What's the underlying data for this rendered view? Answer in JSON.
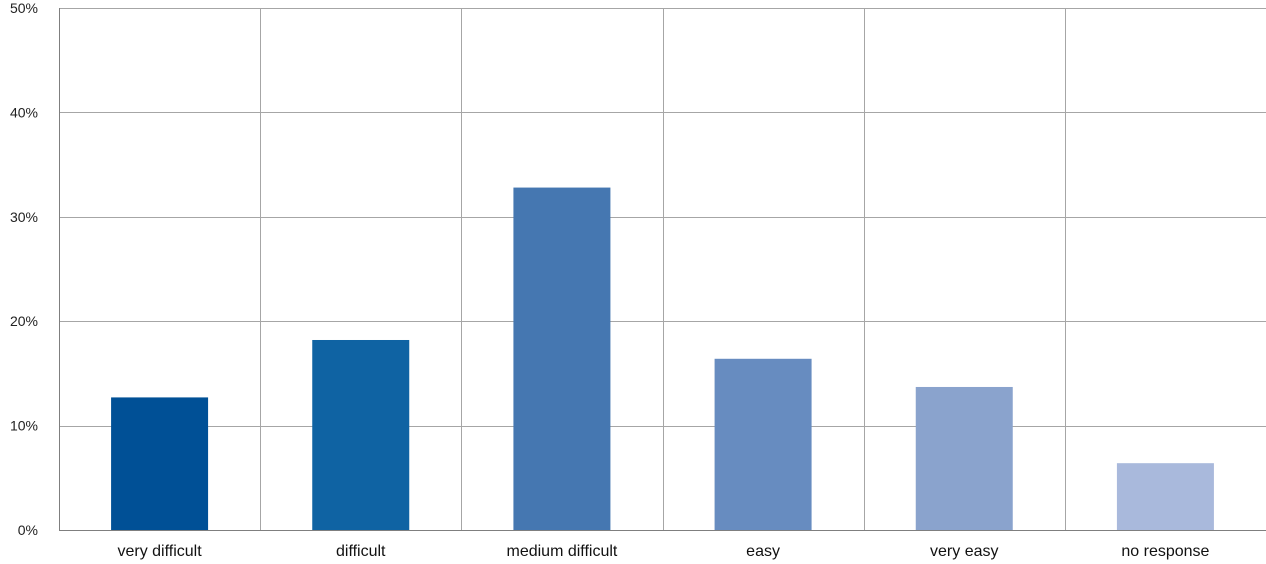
{
  "chart_data": {
    "type": "bar",
    "title": "",
    "xlabel": "",
    "ylabel": "",
    "categories": [
      "very difficult",
      "difficult",
      "medium difficult",
      "easy",
      "very easy",
      "no response"
    ],
    "values": [
      12.7,
      18.2,
      32.8,
      16.4,
      13.7,
      6.4
    ],
    "colors": [
      "#005096",
      "#0f63a3",
      "#4577b1",
      "#678cc0",
      "#8aa3cd",
      "#a9b9dc"
    ],
    "ylim": [
      0,
      50
    ],
    "yticks": [
      0,
      10,
      20,
      30,
      40,
      50
    ],
    "ytick_labels": [
      "0%",
      "10%",
      "20%",
      "30%",
      "40%",
      "50%"
    ],
    "value_unit": "%",
    "grid": true,
    "legend": "none"
  }
}
